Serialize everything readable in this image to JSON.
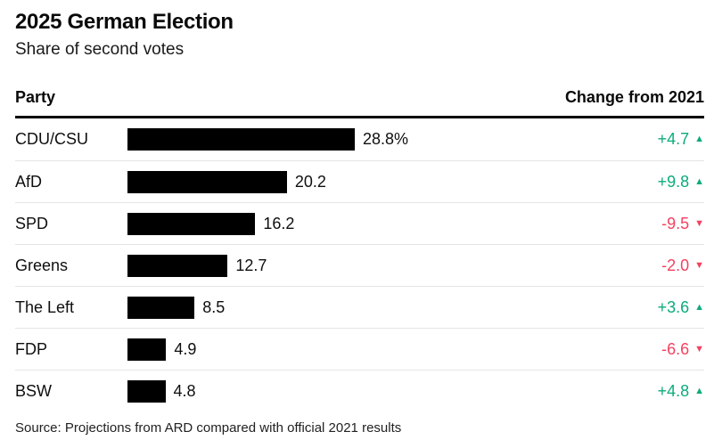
{
  "header": {
    "title": "2025 German Election",
    "subtitle": "Share of second votes"
  },
  "table": {
    "party_header": "Party",
    "change_header": "Change from 2021"
  },
  "chart_data": {
    "type": "bar",
    "title": "2025 German Election",
    "subtitle": "Share of second votes",
    "orientation": "horizontal",
    "unit": "% share of second votes",
    "categories": [
      "CDU/CSU",
      "AfD",
      "SPD",
      "Greens",
      "The Left",
      "FDP",
      "BSW"
    ],
    "values": [
      28.8,
      20.2,
      16.2,
      12.7,
      8.5,
      4.9,
      4.8
    ],
    "value_labels": [
      "28.8%",
      "20.2",
      "16.2",
      "12.7",
      "8.5",
      "4.9",
      "4.8"
    ],
    "xlim": [
      0,
      28.8
    ],
    "grid": false,
    "changes": [
      {
        "label": "+4.7",
        "value": 4.7,
        "direction": "up"
      },
      {
        "label": "+9.8",
        "value": 9.8,
        "direction": "up"
      },
      {
        "label": "-9.5",
        "value": -9.5,
        "direction": "down"
      },
      {
        "label": "-2.0",
        "value": -2.0,
        "direction": "down"
      },
      {
        "label": "+3.6",
        "value": 3.6,
        "direction": "up"
      },
      {
        "label": "-6.6",
        "value": -6.6,
        "direction": "down"
      },
      {
        "label": "+4.8",
        "value": 4.8,
        "direction": "up"
      }
    ]
  },
  "colors": {
    "bar": "#000000",
    "up": "#0cab7c",
    "down": "#f4415f"
  },
  "icons": {
    "up": "▲",
    "down": "▼"
  },
  "footer": {
    "source": "Source: Projections from ARD compared with official 2021 results"
  }
}
